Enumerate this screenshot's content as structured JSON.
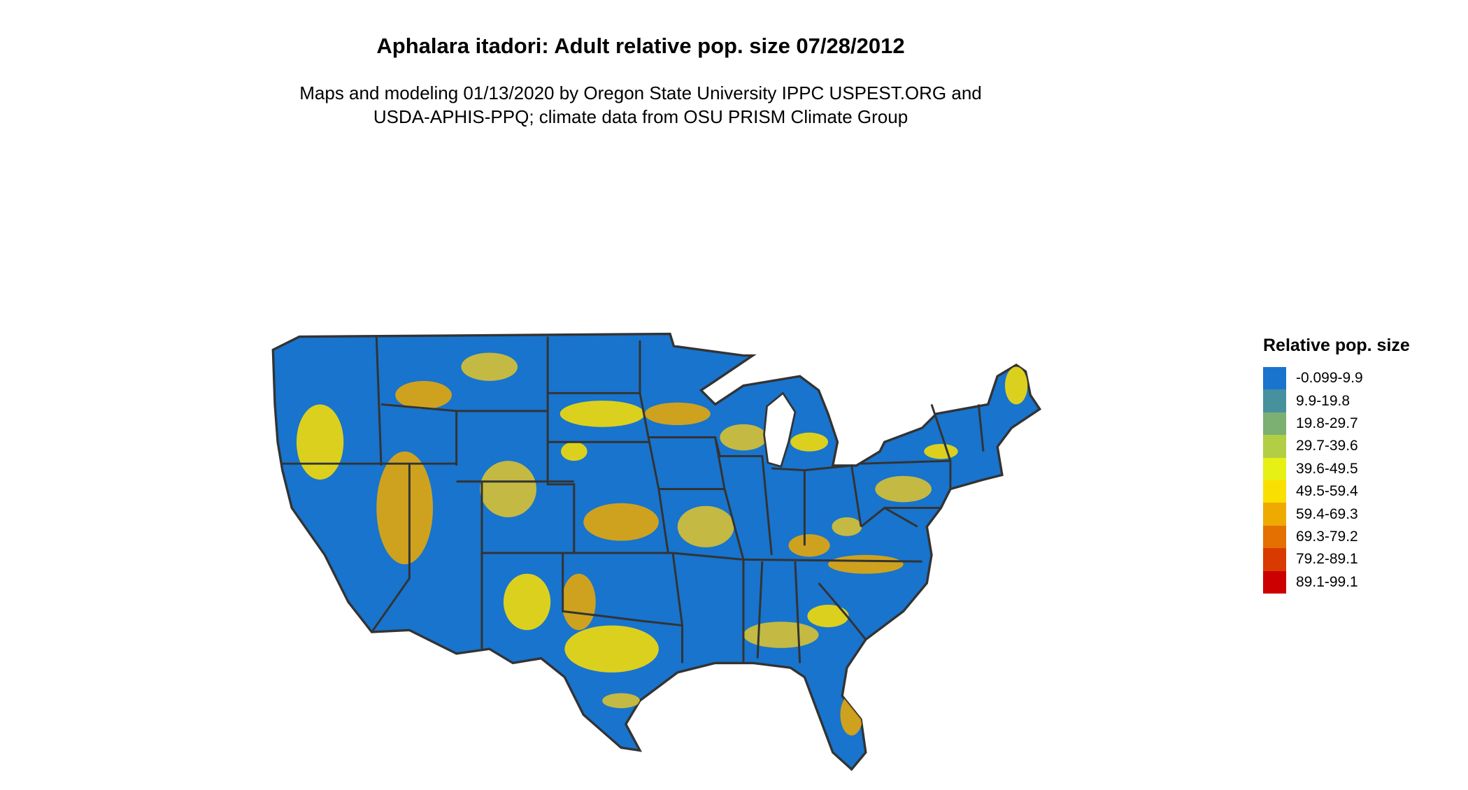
{
  "title": "Aphalara itadori: Adult relative pop. size 07/28/2012",
  "subtitle_lines": [
    "Maps and modeling 01/13/2020 by Oregon State University IPPC USPEST.ORG and",
    "USDA-APHIS-PPQ; climate data from OSU PRISM Climate Group"
  ],
  "map": {
    "region": "Contiguous United States",
    "base_color": "#1874CD",
    "border_color": "#333333",
    "hotspot_colors": [
      "#FFE000",
      "#EEAA00",
      "#E3C52A"
    ]
  },
  "legend": {
    "title": "Relative pop. size",
    "items": [
      {
        "label": "-0.099-9.9",
        "color": "#1874CD"
      },
      {
        "label": "9.9-19.8",
        "color": "#47919F"
      },
      {
        "label": "19.8-29.7",
        "color": "#7CAF72"
      },
      {
        "label": "29.7-39.6",
        "color": "#B2CE45"
      },
      {
        "label": "39.6-49.5",
        "color": "#E6F015"
      },
      {
        "label": "49.5-59.4",
        "color": "#FAE000"
      },
      {
        "label": "59.4-69.3",
        "color": "#EEAA00"
      },
      {
        "label": "69.3-79.2",
        "color": "#E37000"
      },
      {
        "label": "79.2-89.1",
        "color": "#D93A00"
      },
      {
        "label": "89.1-99.1",
        "color": "#CC0000"
      }
    ]
  }
}
